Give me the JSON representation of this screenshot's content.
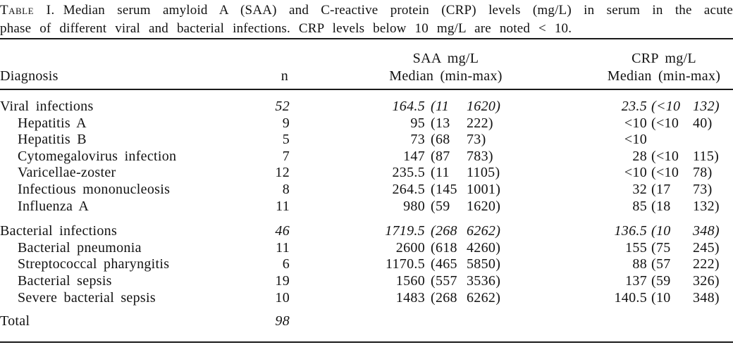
{
  "title": {
    "label": "Table I.",
    "line1": "Median serum amyloid A (SAA) and C-reactive protein (CRP) levels (mg/L) in serum in the acute",
    "line2": "phase of different viral and bacterial infections. CRP levels below 10 mg/L are noted < 10."
  },
  "table": {
    "headers": {
      "diagnosis": "Diagnosis",
      "n": "n",
      "saa_line1": "SAA mg/L",
      "saa_line2": "Median (min-max)",
      "crp_line1": "CRP mg/L",
      "crp_line2": "Median (min-max)"
    },
    "rows": [
      {
        "style": "group",
        "diagnosis": "Viral infections",
        "n": "52",
        "saa_median": "164.5",
        "saa_min": "(11",
        "saa_max": "1620)",
        "crp_median": "23.5",
        "crp_min": "(<10",
        "crp_max": "132)"
      },
      {
        "style": "sub",
        "diagnosis": "Hepatitis A",
        "n": "9",
        "saa_median": "95",
        "saa_min": "(13",
        "saa_max": "222)",
        "crp_median": "<10",
        "crp_min": "(<10",
        "crp_max": "40)"
      },
      {
        "style": "sub",
        "diagnosis": "Hepatitis B",
        "n": "5",
        "saa_median": "73",
        "saa_min": "(68",
        "saa_max": "73)",
        "crp_median": "<10",
        "crp_min": "",
        "crp_max": ""
      },
      {
        "style": "sub",
        "diagnosis": "Cytomegalovirus infection",
        "n": "7",
        "saa_median": "147",
        "saa_min": "(87",
        "saa_max": "783)",
        "crp_median": "28",
        "crp_min": "(<10",
        "crp_max": "115)"
      },
      {
        "style": "sub",
        "diagnosis": "Varicellae-zoster",
        "n": "12",
        "saa_median": "235.5",
        "saa_min": "(11",
        "saa_max": "1105)",
        "crp_median": "<10",
        "crp_min": "(<10",
        "crp_max": "78)"
      },
      {
        "style": "sub",
        "diagnosis": "Infectious mononucleosis",
        "n": "8",
        "saa_median": "264.5",
        "saa_min": "(145",
        "saa_max": "1001)",
        "crp_median": "32",
        "crp_min": "(17",
        "crp_max": "73)"
      },
      {
        "style": "sub",
        "diagnosis": "Influenza A",
        "n": "11",
        "saa_median": "980",
        "saa_min": "(59",
        "saa_max": "1620)",
        "crp_median": "85",
        "crp_min": "(18",
        "crp_max": "132)"
      },
      {
        "style": "group",
        "diagnosis": "Bacterial infections",
        "n": "46",
        "saa_median": "1719.5",
        "saa_min": "(268",
        "saa_max": "6262)",
        "crp_median": "136.5",
        "crp_min": "(10",
        "crp_max": "348)"
      },
      {
        "style": "sub",
        "diagnosis": "Bacterial pneumonia",
        "n": "11",
        "saa_median": "2600",
        "saa_min": "(618",
        "saa_max": "4260)",
        "crp_median": "155",
        "crp_min": "(75",
        "crp_max": "245)"
      },
      {
        "style": "sub",
        "diagnosis": "Streptococcal pharyngitis",
        "n": "6",
        "saa_median": "1170.5",
        "saa_min": "(465",
        "saa_max": "5850)",
        "crp_median": "88",
        "crp_min": "(57",
        "crp_max": "222)"
      },
      {
        "style": "sub",
        "diagnosis": "Bacterial sepsis",
        "n": "19",
        "saa_median": "1560",
        "saa_min": "(557",
        "saa_max": "3536)",
        "crp_median": "137",
        "crp_min": "(59",
        "crp_max": "326)"
      },
      {
        "style": "sub",
        "diagnosis": "Severe bacterial sepsis",
        "n": "10",
        "saa_median": "1483",
        "saa_min": "(268",
        "saa_max": "6262)",
        "crp_median": "140.5",
        "crp_min": "(10",
        "crp_max": "348)"
      },
      {
        "style": "total",
        "diagnosis": "Total",
        "n": "98"
      }
    ]
  }
}
